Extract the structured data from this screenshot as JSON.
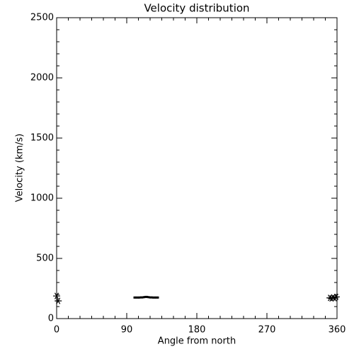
{
  "chart_data": {
    "type": "scatter",
    "title": "Velocity distribution",
    "x_label": "Angle from north",
    "y_label": "Velocity (km/s)",
    "xlim": [
      0,
      360
    ],
    "xticks": [
      0,
      90,
      180,
      270,
      360
    ],
    "x_minor": 6,
    "ylim": [
      0,
      2500
    ],
    "yticks": [
      0,
      500,
      1000,
      1500,
      2000,
      2500
    ],
    "y_minor": 5,
    "series": [
      {
        "marker": "asterisk",
        "color": "#000000",
        "x": [
          0,
          2,
          351,
          353,
          355,
          357,
          359
        ],
        "values": [
          188,
          147,
          172,
          168,
          176,
          170,
          180
        ]
      },
      {
        "marker": "dot",
        "color": "#000000",
        "x": [
          100,
          102,
          104,
          106,
          108,
          110,
          112,
          114,
          116,
          118,
          120,
          122,
          124,
          126,
          128,
          130
        ],
        "values": [
          175,
          175,
          175,
          175,
          176,
          176,
          178,
          180,
          180,
          178,
          176,
          176,
          175,
          175,
          175,
          175
        ]
      }
    ]
  }
}
